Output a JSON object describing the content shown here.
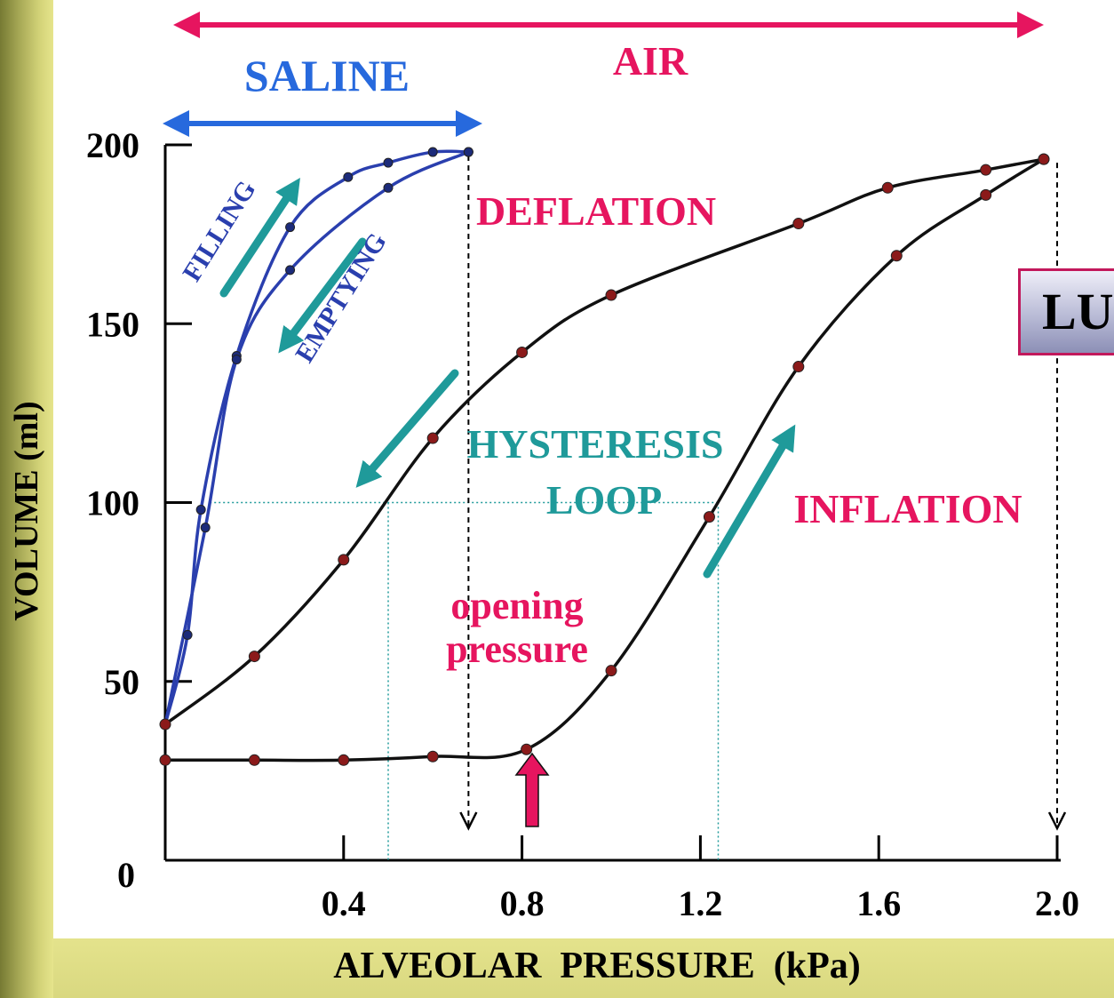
{
  "chart_data": {
    "type": "line",
    "xlabel": "ALVEOLAR  PRESSURE  (kPa)",
    "ylabel": "VOLUME (ml)",
    "x_ticks": [
      "0.4",
      "0.8",
      "1.2",
      "1.6",
      "2.0"
    ],
    "x_tick_values": [
      0.4,
      0.8,
      1.2,
      1.6,
      2.0
    ],
    "y_ticks": [
      "0",
      "50",
      "100",
      "150",
      "200"
    ],
    "y_tick_values": [
      0,
      50,
      100,
      150,
      200
    ],
    "xlim": [
      0,
      2.0
    ],
    "ylim": [
      0,
      200
    ],
    "series": [
      {
        "name": "FILLING",
        "color": "#2a3fae",
        "x": [
          0.0,
          0.05,
          0.08,
          0.16,
          0.28,
          0.41,
          0.5,
          0.6,
          0.68
        ],
        "y": [
          38,
          63,
          98,
          141,
          177,
          191,
          195,
          198,
          198
        ]
      },
      {
        "name": "EMPTYING",
        "color": "#2a3fae",
        "x": [
          0.68,
          0.5,
          0.28,
          0.16,
          0.09,
          0.0
        ],
        "y": [
          198,
          188,
          165,
          140,
          93,
          38
        ]
      },
      {
        "name": "INFLATION",
        "color": "#111111",
        "x": [
          0.0,
          0.2,
          0.4,
          0.6,
          0.81,
          1.0,
          1.22,
          1.42,
          1.64,
          1.84,
          1.97
        ],
        "y": [
          28,
          28,
          28,
          29,
          31,
          53,
          96,
          138,
          169,
          186,
          196
        ]
      },
      {
        "name": "DEFLATION",
        "color": "#111111",
        "x": [
          1.97,
          1.84,
          1.62,
          1.42,
          1.0,
          0.8,
          0.6,
          0.4,
          0.2,
          0.0
        ],
        "y": [
          196,
          193,
          188,
          178,
          158,
          142,
          118,
          84,
          57,
          38
        ]
      }
    ],
    "annotations": {
      "air": "AIR",
      "saline": "SALINE",
      "filling": "FILLING",
      "emptying": "EMPTYING",
      "deflation": "DEFLATION",
      "inflation": "INFLATION",
      "hysteresis_line1": "HYSTERESIS",
      "hysteresis_line2": "LOOP",
      "opening_line1": "opening",
      "opening_line2": "pressure",
      "lung_box": "LU"
    }
  },
  "colors": {
    "air": "#e6155f",
    "saline": "#2769dd",
    "saline_curve": "#2a3fae",
    "teal": "#1f9a9a",
    "lung_curve": "#111111",
    "marker": "#8b1a1a",
    "background_olive": "#d6d57c"
  }
}
